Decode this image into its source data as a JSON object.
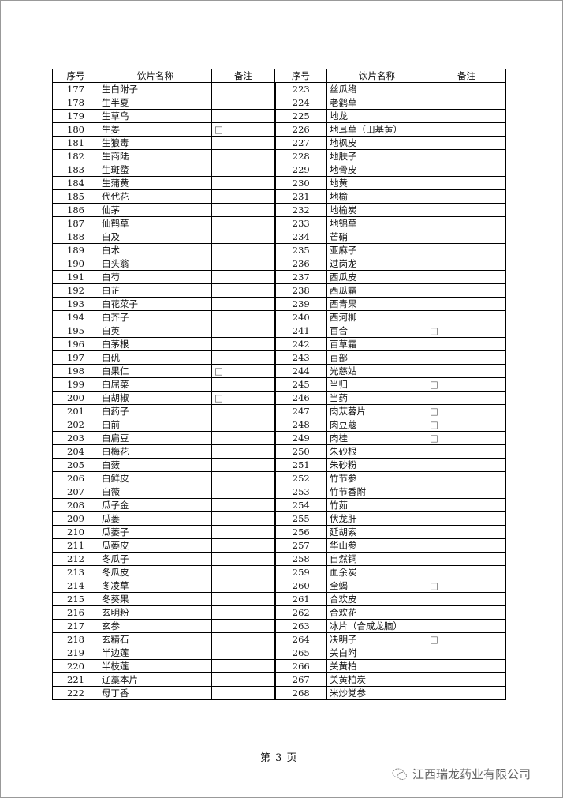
{
  "table": {
    "headers": [
      "序号",
      "饮片名称",
      "备注",
      "序号",
      "饮片名称",
      "备注"
    ],
    "left_rows": [
      {
        "num": "177",
        "name": "生白附子",
        "note": ""
      },
      {
        "num": "178",
        "name": "生半夏",
        "note": ""
      },
      {
        "num": "179",
        "name": "生草乌",
        "note": ""
      },
      {
        "num": "180",
        "name": "生姜",
        "note": "□"
      },
      {
        "num": "181",
        "name": "生狼毒",
        "note": ""
      },
      {
        "num": "182",
        "name": "生商陆",
        "note": ""
      },
      {
        "num": "183",
        "name": "生斑蝥",
        "note": ""
      },
      {
        "num": "184",
        "name": "生蒲黄",
        "note": ""
      },
      {
        "num": "185",
        "name": "代代花",
        "note": ""
      },
      {
        "num": "186",
        "name": "仙茅",
        "note": ""
      },
      {
        "num": "187",
        "name": "仙鹤草",
        "note": ""
      },
      {
        "num": "188",
        "name": "白及",
        "note": ""
      },
      {
        "num": "189",
        "name": "白术",
        "note": ""
      },
      {
        "num": "190",
        "name": "白头翁",
        "note": ""
      },
      {
        "num": "191",
        "name": "白芍",
        "note": ""
      },
      {
        "num": "192",
        "name": "白芷",
        "note": ""
      },
      {
        "num": "193",
        "name": "白花菜子",
        "note": ""
      },
      {
        "num": "194",
        "name": "白芥子",
        "note": ""
      },
      {
        "num": "195",
        "name": "白英",
        "note": ""
      },
      {
        "num": "196",
        "name": "白茅根",
        "note": ""
      },
      {
        "num": "197",
        "name": "白矾",
        "note": ""
      },
      {
        "num": "198",
        "name": "白果仁",
        "note": "□"
      },
      {
        "num": "199",
        "name": "白屈菜",
        "note": ""
      },
      {
        "num": "200",
        "name": "白胡椒",
        "note": "□"
      },
      {
        "num": "201",
        "name": "白药子",
        "note": ""
      },
      {
        "num": "202",
        "name": "白前",
        "note": ""
      },
      {
        "num": "203",
        "name": "白扁豆",
        "note": ""
      },
      {
        "num": "204",
        "name": "白梅花",
        "note": ""
      },
      {
        "num": "205",
        "name": "白蔹",
        "note": ""
      },
      {
        "num": "206",
        "name": "白鲜皮",
        "note": ""
      },
      {
        "num": "207",
        "name": "白薇",
        "note": ""
      },
      {
        "num": "208",
        "name": "瓜子金",
        "note": ""
      },
      {
        "num": "209",
        "name": "瓜蒌",
        "note": ""
      },
      {
        "num": "210",
        "name": "瓜蒌子",
        "note": ""
      },
      {
        "num": "211",
        "name": "瓜蒌皮",
        "note": ""
      },
      {
        "num": "212",
        "name": "冬瓜子",
        "note": ""
      },
      {
        "num": "213",
        "name": "冬瓜皮",
        "note": ""
      },
      {
        "num": "214",
        "name": "冬凌草",
        "note": ""
      },
      {
        "num": "215",
        "name": "冬葵果",
        "note": ""
      },
      {
        "num": "216",
        "name": "玄明粉",
        "note": ""
      },
      {
        "num": "217",
        "name": "玄参",
        "note": ""
      },
      {
        "num": "218",
        "name": "玄精石",
        "note": ""
      },
      {
        "num": "219",
        "name": "半边莲",
        "note": ""
      },
      {
        "num": "220",
        "name": "半枝莲",
        "note": ""
      },
      {
        "num": "221",
        "name": "辽藁本片",
        "note": ""
      },
      {
        "num": "222",
        "name": "母丁香",
        "note": ""
      }
    ],
    "right_rows": [
      {
        "num": "223",
        "name": "丝瓜络",
        "note": ""
      },
      {
        "num": "224",
        "name": "老鹳草",
        "note": ""
      },
      {
        "num": "225",
        "name": "地龙",
        "note": ""
      },
      {
        "num": "226",
        "name": "地耳草（田基黄）",
        "note": ""
      },
      {
        "num": "227",
        "name": "地枫皮",
        "note": ""
      },
      {
        "num": "228",
        "name": "地肤子",
        "note": ""
      },
      {
        "num": "229",
        "name": "地骨皮",
        "note": ""
      },
      {
        "num": "230",
        "name": "地黄",
        "note": ""
      },
      {
        "num": "231",
        "name": "地榆",
        "note": ""
      },
      {
        "num": "232",
        "name": "地榆炭",
        "note": ""
      },
      {
        "num": "233",
        "name": "地锦草",
        "note": ""
      },
      {
        "num": "234",
        "name": "芒硝",
        "note": ""
      },
      {
        "num": "235",
        "name": "亚麻子",
        "note": ""
      },
      {
        "num": "236",
        "name": "过岗龙",
        "note": ""
      },
      {
        "num": "237",
        "name": "西瓜皮",
        "note": ""
      },
      {
        "num": "238",
        "name": "西瓜霜",
        "note": ""
      },
      {
        "num": "239",
        "name": "西青果",
        "note": ""
      },
      {
        "num": "240",
        "name": "西河柳",
        "note": ""
      },
      {
        "num": "241",
        "name": "百合",
        "note": "□"
      },
      {
        "num": "242",
        "name": "百草霜",
        "note": ""
      },
      {
        "num": "243",
        "name": "百部",
        "note": ""
      },
      {
        "num": "244",
        "name": "光慈姑",
        "note": ""
      },
      {
        "num": "245",
        "name": "当归",
        "note": "□"
      },
      {
        "num": "246",
        "name": "当药",
        "note": ""
      },
      {
        "num": "247",
        "name": "肉苁蓉片",
        "note": "□"
      },
      {
        "num": "248",
        "name": "肉豆蔻",
        "note": "□"
      },
      {
        "num": "249",
        "name": "肉桂",
        "note": "□"
      },
      {
        "num": "250",
        "name": "朱砂根",
        "note": ""
      },
      {
        "num": "251",
        "name": "朱砂粉",
        "note": ""
      },
      {
        "num": "252",
        "name": "竹节参",
        "note": ""
      },
      {
        "num": "253",
        "name": "竹节香附",
        "note": ""
      },
      {
        "num": "254",
        "name": "竹茹",
        "note": ""
      },
      {
        "num": "255",
        "name": "伏龙肝",
        "note": ""
      },
      {
        "num": "256",
        "name": "延胡索",
        "note": ""
      },
      {
        "num": "257",
        "name": "华山参",
        "note": ""
      },
      {
        "num": "258",
        "name": "自然铜",
        "note": ""
      },
      {
        "num": "259",
        "name": "血余炭",
        "note": ""
      },
      {
        "num": "260",
        "name": "全蝎",
        "note": "□"
      },
      {
        "num": "261",
        "name": "合欢皮",
        "note": ""
      },
      {
        "num": "262",
        "name": "合欢花",
        "note": ""
      },
      {
        "num": "263",
        "name": "冰片（合成龙脑）",
        "note": ""
      },
      {
        "num": "264",
        "name": "决明子",
        "note": "□"
      },
      {
        "num": "265",
        "name": "关白附",
        "note": ""
      },
      {
        "num": "266",
        "name": "关黄柏",
        "note": ""
      },
      {
        "num": "267",
        "name": "关黄柏炭",
        "note": ""
      },
      {
        "num": "268",
        "name": "米炒党参",
        "note": ""
      }
    ]
  },
  "footer": {
    "page_label": "第 3 页",
    "watermark_text": "江西瑞龙药业有限公司",
    "watermark_icon": "wechat-icon"
  }
}
